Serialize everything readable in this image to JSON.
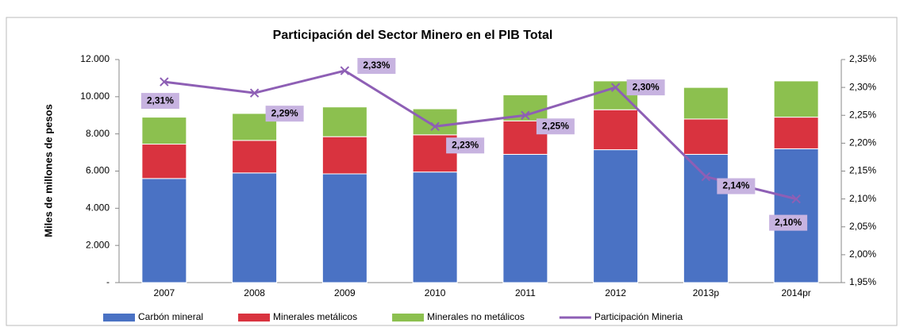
{
  "chart_data": {
    "type": "bar",
    "stacked": true,
    "title": "Participación del Sector Minero en el PIB Total",
    "y_label": "Miles de millones de pesos",
    "categories": [
      "2007",
      "2008",
      "2009",
      "2010",
      "2011",
      "2012",
      "2013p",
      "2014pr"
    ],
    "series": [
      {
        "name": "Carbón mineral",
        "color": "#4a72c4",
        "values": [
          5600,
          5900,
          5850,
          5950,
          6900,
          7150,
          6900,
          7200
        ]
      },
      {
        "name": "Minerales metálicos",
        "color": "#d9333f",
        "values": [
          1850,
          1750,
          2000,
          2000,
          1800,
          2150,
          1900,
          1700
        ]
      },
      {
        "name": "Minerales no metálicos",
        "color": "#8cc04f",
        "values": [
          1450,
          1450,
          1600,
          1400,
          1400,
          1550,
          1700,
          1950
        ]
      },
      {
        "name": "Participación Mineria",
        "color": "#8e5fb5",
        "type": "line",
        "axis": "y2",
        "values": [
          2.31,
          2.29,
          2.33,
          2.23,
          2.25,
          2.3,
          2.14,
          2.1
        ],
        "value_labels": [
          "2,31%",
          "2,29%",
          "2,33%",
          "2,23%",
          "2,25%",
          "2,30%",
          "2,14%",
          "2,10%"
        ]
      }
    ],
    "ylim": [
      0,
      12000
    ],
    "yticks": [
      {
        "value": 0,
        "label": "-"
      },
      {
        "value": 2000,
        "label": "2.000"
      },
      {
        "value": 4000,
        "label": "4.000"
      },
      {
        "value": 6000,
        "label": "6.000"
      },
      {
        "value": 8000,
        "label": "8.000"
      },
      {
        "value": 10000,
        "label": "10.000"
      },
      {
        "value": 12000,
        "label": "12.000"
      }
    ],
    "y2lim": [
      1.95,
      2.35
    ],
    "y2ticks": [
      {
        "value": 1.95,
        "label": "1,95%"
      },
      {
        "value": 2.0,
        "label": "2,00%"
      },
      {
        "value": 2.05,
        "label": "2,05%"
      },
      {
        "value": 2.1,
        "label": "2,10%"
      },
      {
        "value": 2.15,
        "label": "2,15%"
      },
      {
        "value": 2.2,
        "label": "2,20%"
      },
      {
        "value": 2.25,
        "label": "2,25%"
      },
      {
        "value": 2.3,
        "label": "2,30%"
      },
      {
        "value": 2.35,
        "label": "2,35%"
      }
    ],
    "legend": "bottom"
  }
}
